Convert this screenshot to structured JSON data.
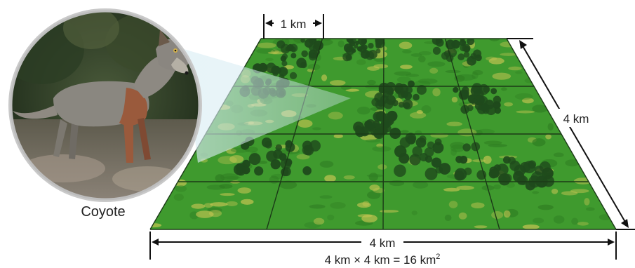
{
  "labels": {
    "animal": "Coyote",
    "top_width": "1 km",
    "side_length": "4 km",
    "bottom_length": "4 km",
    "area_formula_base": "4 km × 4 km = 16 km",
    "area_formula_exp": "2"
  },
  "grid": {
    "rows": 4,
    "cols": 4
  },
  "colors": {
    "field": "#3f9a2e",
    "field_dark": "#2f7d22",
    "forest": "#1f4a1c",
    "patch": "#c8c653",
    "grid_line": "#1b3a17",
    "cone": "#cfe6ef",
    "circle_border": "#c9c9c9",
    "fur_grey": "#8a8780",
    "fur_rust": "#9a5a3c"
  }
}
